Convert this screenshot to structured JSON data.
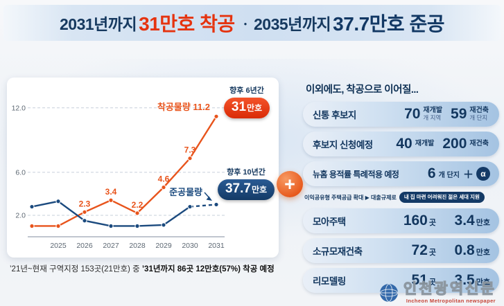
{
  "banner": {
    "t1": "2031년까지",
    "h1": "31만호 착공",
    "sep": "ㆍ",
    "t2": "2035년까지",
    "h2": "37.7만호 준공"
  },
  "chart_card": {
    "badge6_caption": "향후 6년간",
    "badge6_num": "31",
    "badge6_unit": "만호",
    "badge10_caption": "향후 10년간",
    "badge10_num": "37.7",
    "badge10_unit": "만호",
    "caption_normal": "’21년~현재 구역지정 153곳(21만호) 중 ",
    "caption_bold": "’31년까지 86곳 12만호(57%) 착공 예정"
  },
  "chart_data": {
    "type": "line",
    "x": [
      "2024",
      "2025",
      "2026",
      "2027",
      "2028",
      "2029",
      "2030",
      "2031"
    ],
    "xticklabels": [
      "2025",
      "2026",
      "2027",
      "2028",
      "2029",
      "2030",
      "2031"
    ],
    "yticks": [
      2.0,
      6.0,
      12.0
    ],
    "ylim": [
      0,
      12.5
    ],
    "grid": "dashed-horizontal",
    "series": [
      {
        "name": "착공물량",
        "color": "#e8541c",
        "values": [
          1.0,
          1.0,
          2.3,
          3.4,
          2.2,
          4.6,
          7.3,
          11.2
        ],
        "point_labels": [
          "",
          "",
          "2.3",
          "3.4",
          "2.2",
          "4.6",
          "7.3",
          ""
        ]
      },
      {
        "name": "준공물량",
        "color": "#1b4a7e",
        "values": [
          2.8,
          3.3,
          1.5,
          1.0,
          1.0,
          1.1,
          2.8,
          3.0
        ],
        "dashed_from": 6
      }
    ]
  },
  "plus_symbol": "+",
  "right_panel": {
    "title": "이외에도, 착공으로 이어질...",
    "pair_rows": [
      {
        "label": "신통 후보지",
        "items": [
          {
            "num": "70",
            "top": "재개발",
            "bottom": "개 지역"
          },
          {
            "num": "59",
            "top": "재건축",
            "bottom": "개 단지"
          }
        ]
      },
      {
        "label": "후보지 신청예정",
        "items": [
          {
            "num": "40",
            "top": "재개발",
            "bottom": ""
          },
          {
            "num": "200",
            "top": "재건축",
            "bottom": ""
          }
        ]
      }
    ],
    "newhome_row": {
      "label": "뉴홈 용적률 특례적용 예정",
      "num": "6",
      "unit": "개 단지",
      "plus": "＋",
      "alpha": "α"
    },
    "note_row": {
      "text": "이익공유형 주택공급 확대 ▶ 대출규제로",
      "pill": "내 집 마련 어려워진 젊은 세대 지원"
    },
    "stat_rows": [
      {
        "label": "모아주택",
        "num1": "160",
        "unit1": "곳",
        "num2": "3.4",
        "unit2": "만호"
      },
      {
        "label": "소규모재건축",
        "num1": "72",
        "unit1": "곳",
        "num2": "0.8",
        "unit2": "만호"
      },
      {
        "label": "리모델링",
        "num1": "51",
        "unit1": "곳",
        "num2": "3.5",
        "unit2": "만호"
      }
    ]
  },
  "watermark": {
    "korean": "인천광역신문",
    "english": "Incheon Metropolitan newspaper"
  }
}
